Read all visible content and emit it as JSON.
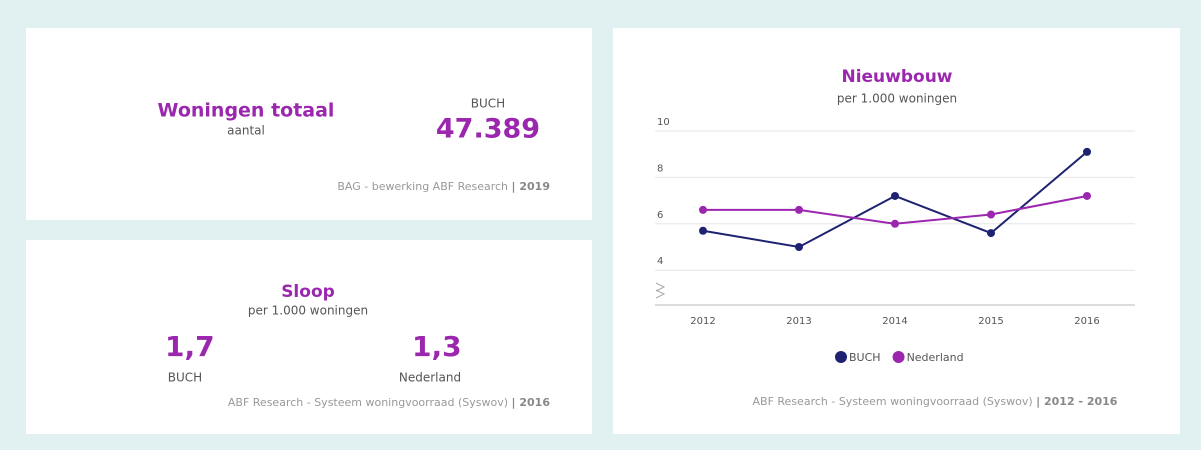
{
  "woningen": {
    "title": "Woningen totaal",
    "subtitle": "aantal",
    "region": "BUCH",
    "value": "47.389",
    "source": "BAG - bewerking ABF Research",
    "period": "| 2019"
  },
  "sloop": {
    "title": "Sloop",
    "subtitle": "per 1.000 woningen",
    "items": [
      {
        "value": "1,7",
        "label": "BUCH"
      },
      {
        "value": "1,3",
        "label": "Nederland"
      }
    ],
    "source": "ABF Research - Systeem woningvoorraad (Syswov)",
    "period": "| 2016"
  },
  "chart_data": {
    "type": "line",
    "title": "Nieuwbouw",
    "subtitle": "per 1.000 woningen",
    "categories": [
      "2012",
      "2013",
      "2014",
      "2015",
      "2016"
    ],
    "series": [
      {
        "name": "BUCH",
        "color": "#1f2270",
        "values": [
          5.7,
          5.0,
          7.2,
          5.6,
          9.1
        ]
      },
      {
        "name": "Nederland",
        "color": "#9b27af",
        "values": [
          6.6,
          6.6,
          6.0,
          6.4,
          7.2
        ]
      }
    ],
    "ylim": [
      2.5,
      10
    ],
    "yticks": [
      4,
      6,
      8,
      10
    ],
    "grid": true,
    "legend": "bottom",
    "source": "ABF Research - Systeem woningvoorraad (Syswov)",
    "period": "| 2012 - 2016"
  }
}
